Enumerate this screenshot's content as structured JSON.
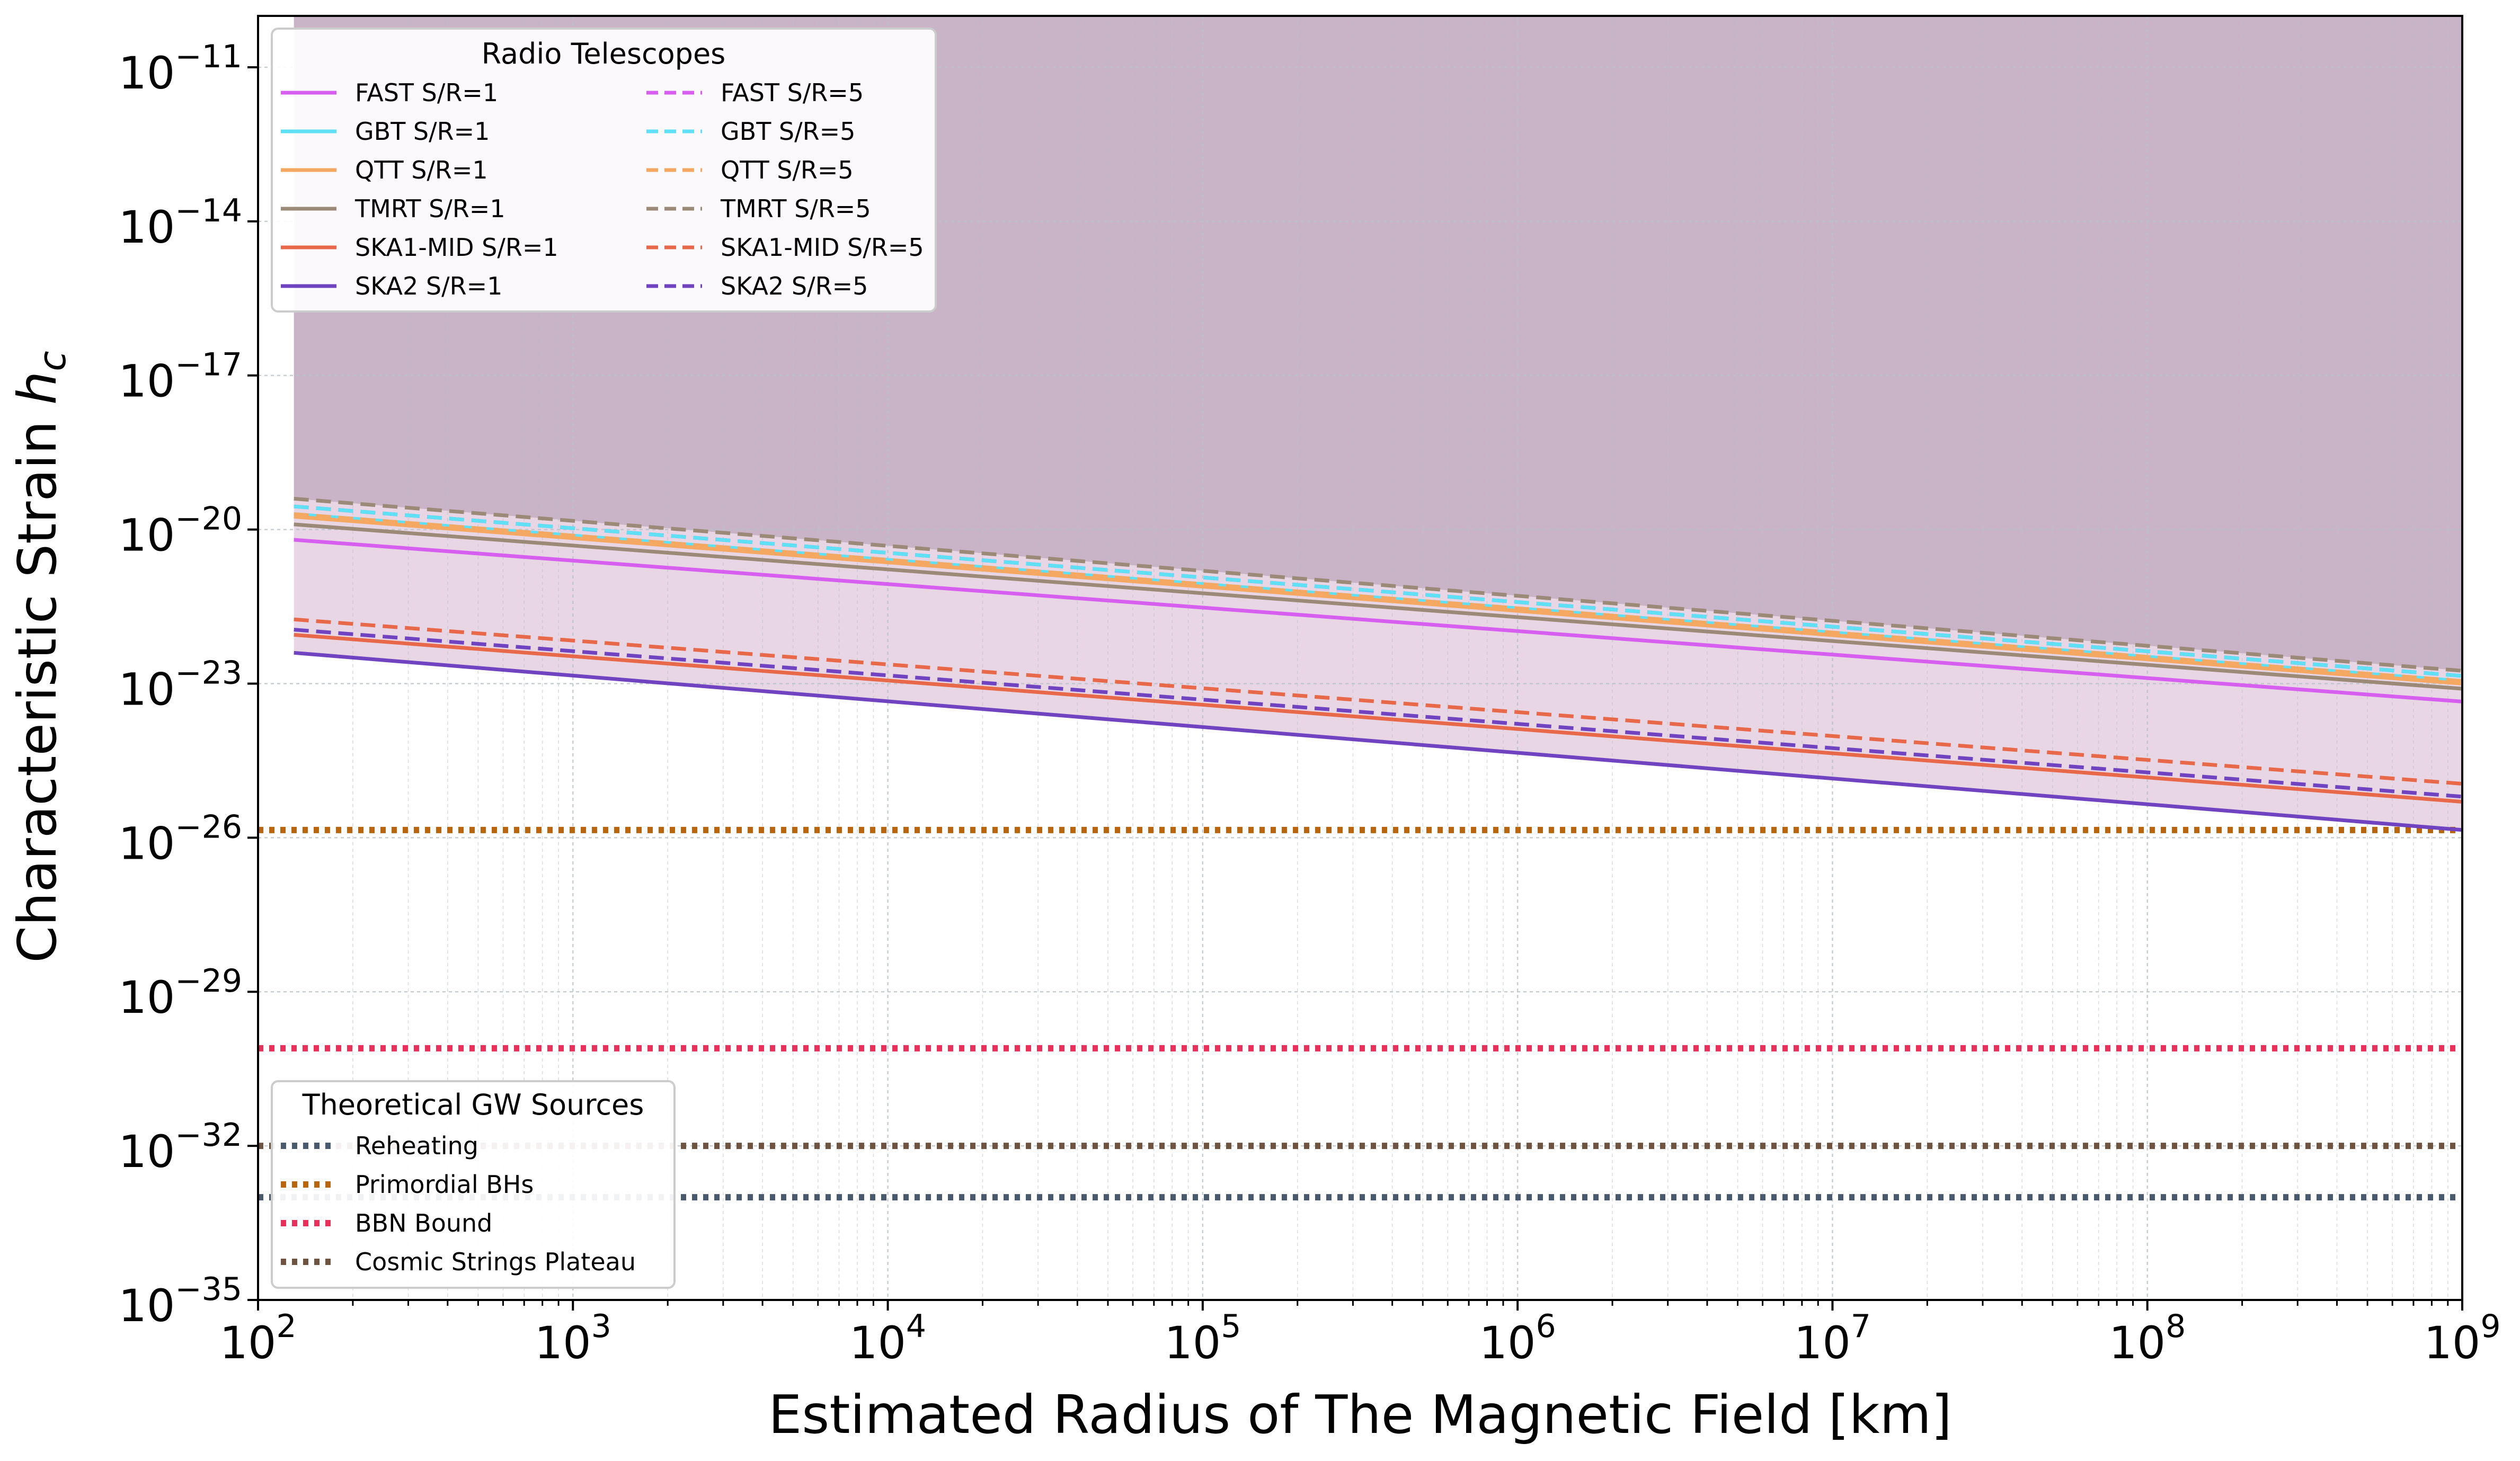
{
  "chart_data": {
    "type": "line",
    "xscale": "log",
    "yscale": "log",
    "xlim": [
      100,
      1000000000
    ],
    "ylim": [
      1e-35,
      1e-10
    ],
    "xlabel": "Estimated Radius of The Magnetic Field",
    "xlabel_unit": "[km]",
    "ylabel": "Characteristic Strain",
    "ylabel_symbol": "h",
    "ylabel_subscript": "c",
    "x_ticks": [
      {
        "base": "10",
        "exp": "2",
        "value": 100
      },
      {
        "base": "10",
        "exp": "3",
        "value": 1000
      },
      {
        "base": "10",
        "exp": "4",
        "value": 10000
      },
      {
        "base": "10",
        "exp": "5",
        "value": 100000
      },
      {
        "base": "10",
        "exp": "6",
        "value": 1000000
      },
      {
        "base": "10",
        "exp": "7",
        "value": 10000000
      },
      {
        "base": "10",
        "exp": "8",
        "value": 100000000
      },
      {
        "base": "10",
        "exp": "9",
        "value": 1000000000
      }
    ],
    "y_ticks": [
      {
        "base": "10",
        "exp": "−11",
        "value": -11
      },
      {
        "base": "10",
        "exp": "−14",
        "value": -14
      },
      {
        "base": "10",
        "exp": "−17",
        "value": -17
      },
      {
        "base": "10",
        "exp": "−20",
        "value": -20
      },
      {
        "base": "10",
        "exp": "−23",
        "value": -23
      },
      {
        "base": "10",
        "exp": "−26",
        "value": -26
      },
      {
        "base": "10",
        "exp": "−29",
        "value": -29
      },
      {
        "base": "10",
        "exp": "−32",
        "value": -32
      },
      {
        "base": "10",
        "exp": "−35",
        "value": -35
      }
    ],
    "grid": true,
    "telescope_legend": {
      "title": "Radio Telescopes",
      "placement": "top-left"
    },
    "source_legend": {
      "title": "Theoretical GW Sources",
      "placement": "bottom-left"
    },
    "series": [
      {
        "name": "FAST S/R=1",
        "style": "solid",
        "color": "#d65ff0",
        "x": [
          130,
          1000000000
        ],
        "log10_y": [
          -20.2,
          -23.35
        ]
      },
      {
        "name": "GBT S/R=1",
        "style": "solid",
        "color": "#5fe0f5",
        "x": [
          130,
          1000000000
        ],
        "log10_y": [
          -19.7,
          -22.95
        ]
      },
      {
        "name": "QTT S/R=1",
        "style": "solid",
        "color": "#f5a862",
        "x": [
          130,
          1000000000
        ],
        "log10_y": [
          -19.75,
          -23.0
        ]
      },
      {
        "name": "TMRT S/R=1",
        "style": "solid",
        "color": "#9c8a78",
        "x": [
          130,
          1000000000
        ],
        "log10_y": [
          -19.9,
          -23.1
        ]
      },
      {
        "name": "SKA1-MID S/R=1",
        "style": "solid",
        "color": "#e8694a",
        "x": [
          130,
          1000000000
        ],
        "log10_y": [
          -22.05,
          -25.3
        ]
      },
      {
        "name": "SKA2 S/R=1",
        "style": "solid",
        "color": "#7044c0",
        "x": [
          130,
          1000000000
        ],
        "log10_y": [
          -22.4,
          -25.85
        ]
      },
      {
        "name": "FAST S/R=5",
        "style": "dashed",
        "color": "#d65ff0",
        "x": [
          130,
          1000000000
        ],
        "log10_y": [
          -19.55,
          -22.85
        ]
      },
      {
        "name": "GBT S/R=5",
        "style": "dashed",
        "color": "#5fe0f5",
        "x": [
          130,
          1000000000
        ],
        "log10_y": [
          -19.55,
          -22.85
        ]
      },
      {
        "name": "QTT S/R=5",
        "style": "dashed",
        "color": "#f5a862",
        "x": [
          130,
          1000000000
        ],
        "log10_y": [
          -19.7,
          -22.95
        ]
      },
      {
        "name": "TMRT S/R=5",
        "style": "dashed",
        "color": "#9c8a78",
        "x": [
          130,
          1000000000
        ],
        "log10_y": [
          -19.4,
          -22.75
        ]
      },
      {
        "name": "SKA1-MID S/R=5",
        "style": "dashed",
        "color": "#e8694a",
        "x": [
          130,
          1000000000
        ],
        "log10_y": [
          -21.75,
          -24.95
        ]
      },
      {
        "name": "SKA2 S/R=5",
        "style": "dashed",
        "color": "#7044c0",
        "x": [
          130,
          1000000000
        ],
        "log10_y": [
          -21.95,
          -25.2
        ]
      }
    ],
    "reference_lines": [
      {
        "name": "Reheating",
        "log10_y": -33.0,
        "color": "#4a5a6e",
        "style": "dotted"
      },
      {
        "name": "Primordial BHs",
        "log10_y": -25.85,
        "color": "#b8650e",
        "style": "dotted"
      },
      {
        "name": "BBN Bound",
        "log10_y": -30.1,
        "color": "#e8305a",
        "style": "dotted"
      },
      {
        "name": "Cosmic Strings Plateau",
        "log10_y": -32.0,
        "color": "#6e5440",
        "style": "dotted"
      }
    ],
    "shaded_regions": [
      {
        "name": "excluded-region",
        "from_series": "TMRT S/R=5",
        "to": "top",
        "color": "#c9b3c6"
      },
      {
        "name": "sensitivity-band",
        "from_series": "SKA2 S/R=1",
        "to_series": "TMRT S/R=5",
        "color": "#e8d6e4"
      }
    ]
  }
}
